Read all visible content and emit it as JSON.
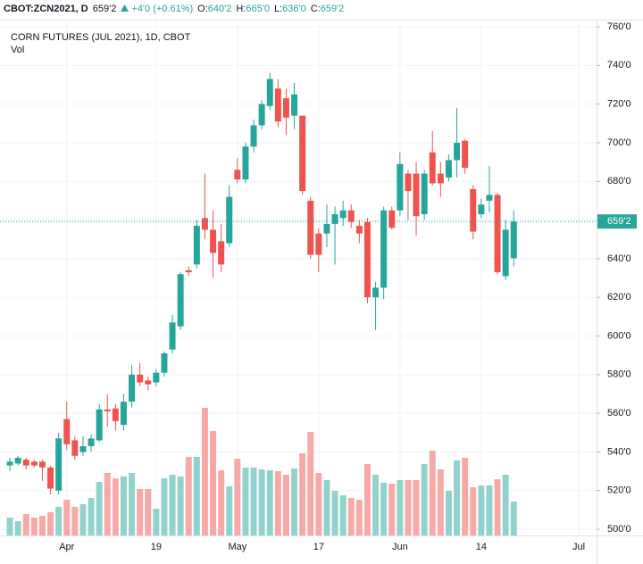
{
  "header": {
    "symbol": "CBOT:ZCN2021, D",
    "price": "659'2",
    "change": "+4'0 (+0.61%)",
    "ohlc": [
      {
        "label": "O:",
        "value": "640'2"
      },
      {
        "label": "H:",
        "value": "665'0"
      },
      {
        "label": "L:",
        "value": "636'0"
      },
      {
        "label": "C:",
        "value": "659'2"
      }
    ]
  },
  "chart_data": {
    "type": "candlestick",
    "title": "CORN FUTURES (JUL 2021), 1D, CBOT",
    "subtitle": "Vol",
    "categories": [
      null,
      null,
      null,
      null,
      null,
      null,
      null,
      "Apr",
      null,
      null,
      null,
      null,
      null,
      null,
      null,
      null,
      null,
      null,
      "19",
      null,
      null,
      null,
      null,
      null,
      null,
      null,
      null,
      null,
      "May",
      null,
      null,
      null,
      null,
      null,
      null,
      null,
      null,
      null,
      "17",
      null,
      null,
      null,
      null,
      null,
      null,
      null,
      null,
      null,
      "Jun",
      null,
      null,
      null,
      null,
      null,
      null,
      null,
      null,
      null,
      "14",
      null,
      null,
      null,
      null,
      null,
      null,
      null,
      null,
      null,
      null,
      null,
      "Jul",
      null,
      null
    ],
    "open": [
      533,
      534,
      536,
      535,
      535,
      532,
      520,
      557,
      546,
      540,
      543,
      546,
      562,
      562.5,
      554,
      566,
      580,
      577,
      576,
      581,
      593,
      605,
      634,
      637,
      661,
      655,
      649,
      648,
      686,
      681,
      698,
      709,
      719,
      728,
      723,
      714,
      714,
      670,
      653,
      653,
      658,
      661,
      665,
      657,
      659,
      620,
      625,
      665,
      665,
      684,
      684,
      663,
      695,
      684,
      682,
      691,
      701,
      676,
      663,
      670,
      673,
      631,
      640.25,
      null,
      null,
      null,
      null,
      null,
      null,
      null,
      null,
      null,
      null
    ],
    "high": [
      537,
      538,
      537,
      536,
      536,
      533,
      550,
      566,
      548,
      548,
      549,
      565,
      570,
      565,
      570,
      585,
      586,
      579,
      583,
      592,
      611,
      633,
      636,
      660,
      684,
      665,
      658,
      678,
      692,
      700,
      712,
      722,
      736,
      733,
      728,
      731,
      714,
      672,
      656,
      668,
      667,
      670,
      668,
      660,
      661,
      628,
      667,
      667,
      695,
      686,
      690,
      686,
      706,
      690,
      694,
      718,
      702,
      678,
      671,
      688,
      674,
      660,
      665,
      null,
      null,
      null,
      null,
      null,
      null,
      null,
      null,
      null,
      null
    ],
    "low": [
      530,
      533,
      531,
      532,
      525,
      518,
      518,
      541,
      536,
      538,
      540,
      545,
      553,
      551,
      551,
      563,
      574,
      572,
      574,
      579,
      591,
      603,
      631,
      635,
      650,
      630,
      633,
      646,
      679,
      679,
      695,
      707,
      717,
      708,
      704,
      707,
      673,
      640,
      633,
      646,
      637,
      657,
      656,
      648,
      617,
      603,
      619,
      655,
      662,
      660,
      652,
      660,
      678,
      672,
      680,
      682,
      684,
      650,
      661,
      664,
      632,
      629,
      636,
      null,
      null,
      null,
      null,
      null,
      null,
      null,
      null,
      null,
      null
    ],
    "close": [
      535,
      537,
      533,
      533,
      532,
      521,
      547,
      544,
      538,
      543,
      547,
      562,
      561,
      556,
      566,
      580,
      576,
      575,
      581,
      591,
      607,
      632,
      633,
      657,
      655,
      643,
      637,
      672,
      681,
      698,
      709,
      720,
      733,
      711,
      713,
      725,
      675,
      642,
      642,
      658,
      663,
      665,
      659,
      653,
      620,
      625,
      665,
      656,
      689,
      675,
      662,
      684,
      679,
      679,
      691,
      700,
      687,
      654,
      668,
      673,
      633,
      655,
      659.25,
      null,
      null,
      null,
      null,
      null,
      null,
      null,
      null,
      null,
      null
    ],
    "volume": [
      20,
      16,
      24,
      20,
      22,
      26,
      32,
      40,
      32,
      35,
      42,
      60,
      70,
      64,
      66,
      70,
      52,
      52,
      30,
      64,
      68,
      66,
      88,
      88,
      143,
      117,
      73,
      55,
      86,
      76,
      76,
      74,
      73,
      72,
      68,
      75,
      92,
      116,
      70,
      62,
      50,
      45,
      42,
      40,
      80,
      68,
      59,
      58,
      62,
      62,
      62,
      80,
      95,
      74,
      50,
      84,
      87,
      54,
      56,
      56,
      63,
      68,
      38,
      null,
      null,
      null,
      null,
      null,
      null,
      null,
      null,
      null,
      null
    ],
    "ylim": [
      496.8,
      763.7
    ],
    "yticks": [
      {
        "value": 500,
        "label": "500'0"
      },
      {
        "value": 520,
        "label": "520'0"
      },
      {
        "value": 540,
        "label": "540'0"
      },
      {
        "value": 560,
        "label": "560'0"
      },
      {
        "value": 580,
        "label": "580'0"
      },
      {
        "value": 600,
        "label": "600'0"
      },
      {
        "value": 620,
        "label": "620'0"
      },
      {
        "value": 640,
        "label": "640'0"
      },
      {
        "value": 660,
        "label": "660'0"
      },
      {
        "value": 680,
        "label": "680'0"
      },
      {
        "value": 700,
        "label": "700'0"
      },
      {
        "value": 720,
        "label": "720'0"
      },
      {
        "value": 740,
        "label": "740'0"
      },
      {
        "value": 760,
        "label": "760'0"
      }
    ],
    "volume_ylim": [
      0,
      578
    ],
    "last_price": {
      "value": 659.25,
      "label": "659'2"
    },
    "grid": true,
    "up_color": "#26a69a",
    "down_color": "#ef5350",
    "volume_up_color": "#92d2cc",
    "volume_down_color": "#f7a9a7"
  }
}
